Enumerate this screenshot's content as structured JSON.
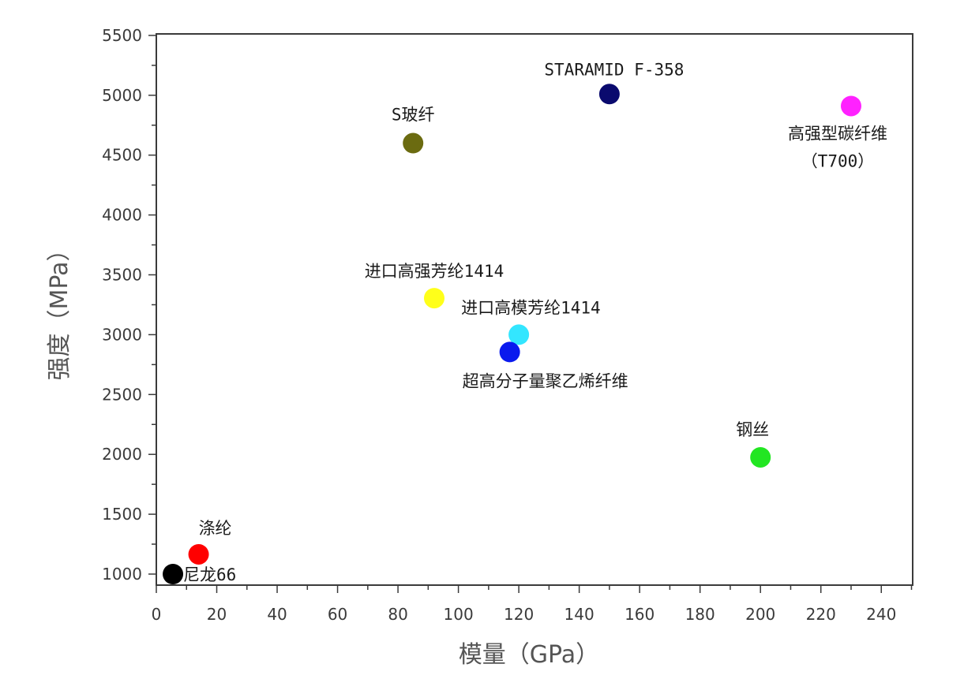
{
  "chart_data": {
    "type": "scatter",
    "title": "",
    "xlabel": "模量（GPa）",
    "ylabel": "强度（MPa）",
    "xlim": [
      0,
      250
    ],
    "ylim": [
      900,
      5500
    ],
    "x_ticks": [
      0,
      20,
      40,
      60,
      80,
      100,
      120,
      140,
      160,
      180,
      200,
      220,
      240
    ],
    "y_ticks": [
      1000,
      1500,
      2000,
      2500,
      3000,
      3500,
      4000,
      4500,
      5000,
      5500
    ],
    "grid": false,
    "legend": "none",
    "points": [
      {
        "label_lines": [
          "尼龙66"
        ],
        "x": 5.5,
        "y": 1000,
        "color": "#000000"
      },
      {
        "label_lines": [
          "涤纶"
        ],
        "x": 14,
        "y": 1165,
        "color": "#ff0000"
      },
      {
        "label_lines": [
          "S玻纤"
        ],
        "x": 85,
        "y": 4600,
        "color": "#6b6b10"
      },
      {
        "label_lines": [
          "进口高强芳纶1414"
        ],
        "x": 92,
        "y": 3305,
        "color": "#ffff1a"
      },
      {
        "label_lines": [
          "进口高模芳纶1414"
        ],
        "x": 120,
        "y": 3000,
        "color": "#33e6ff"
      },
      {
        "label_lines": [
          "超高分子量聚乙烯纤维"
        ],
        "x": 117,
        "y": 2855,
        "color": "#0a1aee"
      },
      {
        "label_lines": [
          "STARAMID F-358"
        ],
        "x": 150,
        "y": 5010,
        "color": "#0a0a6e"
      },
      {
        "label_lines": [
          "高强型碳纤维",
          "（T700）"
        ],
        "x": 230,
        "y": 4910,
        "color": "#ff22ff"
      },
      {
        "label_lines": [
          "钢丝"
        ],
        "x": 200,
        "y": 1975,
        "color": "#22e622"
      }
    ]
  }
}
